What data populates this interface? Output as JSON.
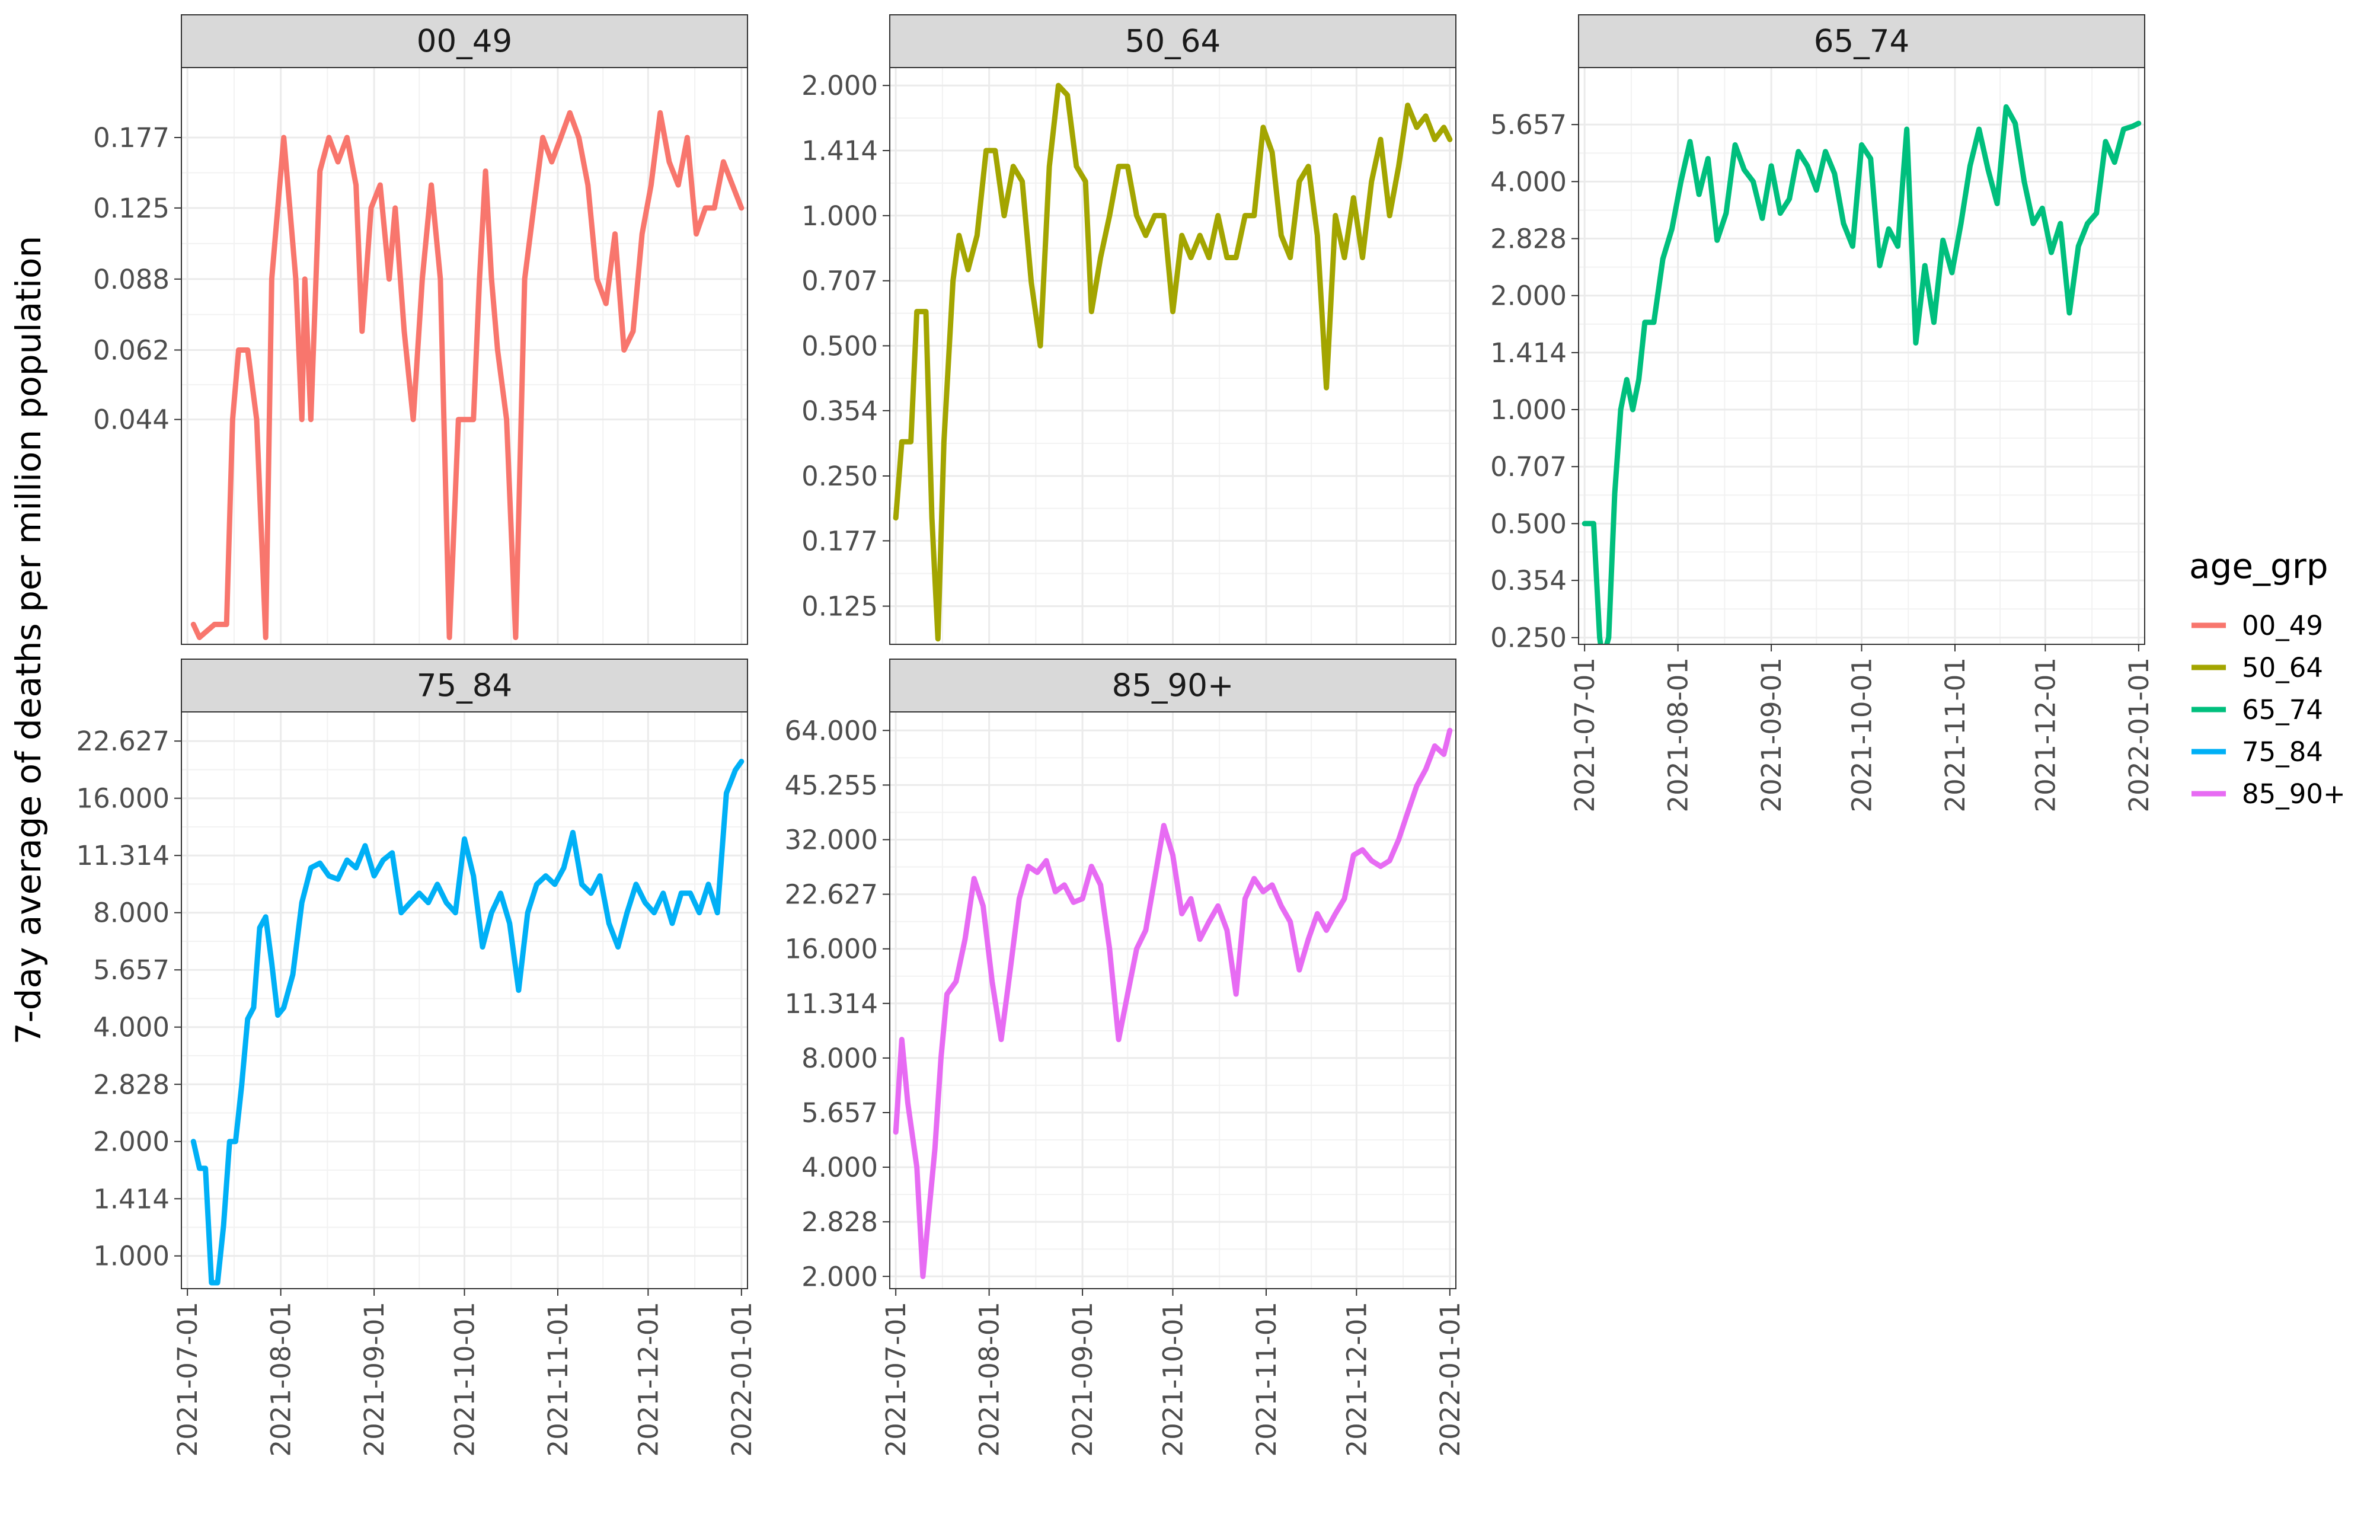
{
  "chart_data": {
    "type": "line",
    "ylabel": "7-day average of deaths per million population",
    "xlabel": "",
    "y_scale": "log2",
    "x_ticks": [
      "2021-07-01",
      "2021-08-01",
      "2021-09-01",
      "2021-10-01",
      "2021-11-01",
      "2021-12-01",
      "2022-01-01"
    ],
    "legend": {
      "title": "age_grp",
      "position": "right",
      "entries": [
        "00_49",
        "50_64",
        "65_74",
        "75_84",
        "85_90+"
      ]
    },
    "grid": true,
    "colors": {
      "00_49": "#F8766D",
      "50_64": "#A3A500",
      "65_74": "#00BF7D",
      "75_84": "#00B0F6",
      "85_90+": "#E76BF3"
    },
    "panels": [
      {
        "name": "00_49",
        "ylim": [
          0.0145,
          0.25
        ],
        "y_ticks": [
          "0.044",
          "0.062",
          "0.088",
          "0.125",
          "0.177"
        ],
        "series": [
          {
            "name": "00_49",
            "x": [
              "2021-07-03",
              "2021-07-05",
              "2021-07-10",
              "2021-07-14",
              "2021-07-16",
              "2021-07-18",
              "2021-07-21",
              "2021-07-24",
              "2021-07-27",
              "2021-07-29",
              "2021-07-31",
              "2021-08-02",
              "2021-08-04",
              "2021-08-06",
              "2021-08-08",
              "2021-08-09",
              "2021-08-11",
              "2021-08-14",
              "2021-08-17",
              "2021-08-20",
              "2021-08-23",
              "2021-08-26",
              "2021-08-28",
              "2021-08-31",
              "2021-09-03",
              "2021-09-06",
              "2021-09-08",
              "2021-09-11",
              "2021-09-14",
              "2021-09-17",
              "2021-09-20",
              "2021-09-23",
              "2021-09-26",
              "2021-09-29",
              "2021-10-01",
              "2021-10-04",
              "2021-10-06",
              "2021-10-08",
              "2021-10-10",
              "2021-10-12",
              "2021-10-15",
              "2021-10-18",
              "2021-10-21",
              "2021-10-24",
              "2021-10-27",
              "2021-10-30",
              "2021-11-02",
              "2021-11-05",
              "2021-11-08",
              "2021-11-11",
              "2021-11-14",
              "2021-11-17",
              "2021-11-20",
              "2021-11-23",
              "2021-11-26",
              "2021-11-29",
              "2021-12-02",
              "2021-12-05",
              "2021-12-08",
              "2021-12-11",
              "2021-12-14",
              "2021-12-17",
              "2021-12-20",
              "2021-12-23",
              "2021-12-26",
              "2021-12-29",
              "2022-01-01"
            ],
            "values": [
              0.016,
              0.015,
              0.016,
              0.016,
              0.044,
              0.062,
              0.062,
              0.044,
              0.015,
              0.088,
              0.125,
              0.177,
              0.125,
              0.088,
              0.044,
              0.088,
              0.044,
              0.15,
              0.177,
              0.157,
              0.177,
              0.14,
              0.068,
              0.125,
              0.14,
              0.088,
              0.125,
              0.068,
              0.044,
              0.088,
              0.14,
              0.088,
              0.015,
              0.044,
              0.044,
              0.044,
              0.088,
              0.15,
              0.088,
              0.062,
              0.044,
              0.015,
              0.088,
              0.125,
              0.177,
              0.157,
              0.177,
              0.2,
              0.177,
              0.14,
              0.088,
              0.078,
              0.11,
              0.062,
              0.068,
              0.11,
              0.14,
              0.2,
              0.157,
              0.14,
              0.177,
              0.11,
              0.125,
              0.125,
              0.157,
              0.14,
              0.125
            ]
          }
        ]
      },
      {
        "name": "50_64",
        "ylim": [
          0.102,
          2.2
        ],
        "y_ticks": [
          "0.125",
          "0.177",
          "0.250",
          "0.354",
          "0.500",
          "0.707",
          "1.000",
          "1.414",
          "2.000"
        ],
        "series": [
          {
            "name": "50_64",
            "x": [
              "2021-07-01",
              "2021-07-03",
              "2021-07-06",
              "2021-07-08",
              "2021-07-11",
              "2021-07-13",
              "2021-07-15",
              "2021-07-17",
              "2021-07-20",
              "2021-07-22",
              "2021-07-25",
              "2021-07-28",
              "2021-07-31",
              "2021-08-03",
              "2021-08-06",
              "2021-08-09",
              "2021-08-12",
              "2021-08-15",
              "2021-08-18",
              "2021-08-21",
              "2021-08-24",
              "2021-08-27",
              "2021-08-30",
              "2021-09-02",
              "2021-09-04",
              "2021-09-07",
              "2021-09-10",
              "2021-09-13",
              "2021-09-16",
              "2021-09-19",
              "2021-09-22",
              "2021-09-25",
              "2021-09-28",
              "2021-10-01",
              "2021-10-04",
              "2021-10-07",
              "2021-10-10",
              "2021-10-13",
              "2021-10-16",
              "2021-10-19",
              "2021-10-22",
              "2021-10-25",
              "2021-10-28",
              "2021-10-31",
              "2021-11-03",
              "2021-11-06",
              "2021-11-09",
              "2021-11-12",
              "2021-11-15",
              "2021-11-18",
              "2021-11-21",
              "2021-11-24",
              "2021-11-27",
              "2021-11-30",
              "2021-12-03",
              "2021-12-06",
              "2021-12-09",
              "2021-12-12",
              "2021-12-15",
              "2021-12-18",
              "2021-12-21",
              "2021-12-24",
              "2021-12-27",
              "2021-12-30",
              "2022-01-01"
            ],
            "values": [
              0.2,
              0.3,
              0.3,
              0.6,
              0.6,
              0.2,
              0.105,
              0.3,
              0.707,
              0.9,
              0.75,
              0.9,
              1.414,
              1.414,
              1.0,
              1.3,
              1.2,
              0.7,
              0.5,
              1.3,
              2.0,
              1.9,
              1.3,
              1.2,
              0.6,
              0.8,
              1.0,
              1.3,
              1.3,
              1.0,
              0.9,
              1.0,
              1.0,
              0.6,
              0.9,
              0.8,
              0.9,
              0.8,
              1.0,
              0.8,
              0.8,
              1.0,
              1.0,
              1.6,
              1.4,
              0.9,
              0.8,
              1.2,
              1.3,
              0.9,
              0.4,
              1.0,
              0.8,
              1.1,
              0.8,
              1.2,
              1.5,
              1.0,
              1.3,
              1.8,
              1.6,
              1.7,
              1.5,
              1.6,
              1.5
            ]
          }
        ]
      },
      {
        "name": "65_74",
        "ylim": [
          0.24,
          8.0
        ],
        "y_ticks": [
          "0.250",
          "0.354",
          "0.500",
          "0.707",
          "1.000",
          "1.414",
          "2.000",
          "2.828",
          "4.000",
          "5.657"
        ],
        "series": [
          {
            "name": "65_74",
            "x": [
              "2021-07-01",
              "2021-07-04",
              "2021-07-06",
              "2021-07-07",
              "2021-07-09",
              "2021-07-11",
              "2021-07-13",
              "2021-07-15",
              "2021-07-17",
              "2021-07-19",
              "2021-07-21",
              "2021-07-24",
              "2021-07-27",
              "2021-07-30",
              "2021-08-02",
              "2021-08-05",
              "2021-08-08",
              "2021-08-11",
              "2021-08-14",
              "2021-08-17",
              "2021-08-20",
              "2021-08-23",
              "2021-08-26",
              "2021-08-29",
              "2021-09-01",
              "2021-09-04",
              "2021-09-07",
              "2021-09-10",
              "2021-09-13",
              "2021-09-16",
              "2021-09-19",
              "2021-09-22",
              "2021-09-25",
              "2021-09-28",
              "2021-10-01",
              "2021-10-04",
              "2021-10-07",
              "2021-10-10",
              "2021-10-13",
              "2021-10-16",
              "2021-10-19",
              "2021-10-22",
              "2021-10-25",
              "2021-10-28",
              "2021-10-31",
              "2021-11-03",
              "2021-11-06",
              "2021-11-09",
              "2021-11-12",
              "2021-11-15",
              "2021-11-18",
              "2021-11-21",
              "2021-11-24",
              "2021-11-27",
              "2021-11-30",
              "2021-12-03",
              "2021-12-06",
              "2021-12-09",
              "2021-12-12",
              "2021-12-15",
              "2021-12-18",
              "2021-12-21",
              "2021-12-24",
              "2021-12-27",
              "2021-12-30",
              "2022-01-01"
            ],
            "values": [
              0.5,
              0.5,
              0.25,
              0.22,
              0.25,
              0.6,
              1.0,
              1.2,
              1.0,
              1.2,
              1.7,
              1.7,
              2.5,
              3.0,
              4.0,
              5.1,
              3.7,
              4.6,
              2.8,
              3.3,
              5.0,
              4.3,
              4.0,
              3.2,
              4.4,
              3.3,
              3.6,
              4.8,
              4.4,
              3.8,
              4.8,
              4.2,
              3.1,
              2.7,
              5.0,
              4.6,
              2.4,
              3.0,
              2.7,
              5.5,
              1.5,
              2.4,
              1.7,
              2.8,
              2.3,
              3.1,
              4.4,
              5.5,
              4.3,
              3.5,
              6.3,
              5.7,
              4.0,
              3.1,
              3.4,
              2.6,
              3.1,
              1.8,
              2.7,
              3.1,
              3.3,
              5.1,
              4.5,
              5.5,
              5.6,
              5.7
            ]
          }
        ]
      },
      {
        "name": "75_84",
        "ylim": [
          0.82,
          27.0
        ],
        "y_ticks": [
          "1.000",
          "1.414",
          "2.000",
          "2.828",
          "4.000",
          "5.657",
          "8.000",
          "11.314",
          "16.000",
          "22.627"
        ],
        "series": [
          {
            "name": "75_84",
            "x": [
              "2021-07-03",
              "2021-07-05",
              "2021-07-07",
              "2021-07-09",
              "2021-07-11",
              "2021-07-13",
              "2021-07-15",
              "2021-07-17",
              "2021-07-19",
              "2021-07-21",
              "2021-07-23",
              "2021-07-25",
              "2021-07-27",
              "2021-07-29",
              "2021-07-31",
              "2021-08-02",
              "2021-08-05",
              "2021-08-08",
              "2021-08-11",
              "2021-08-14",
              "2021-08-17",
              "2021-08-20",
              "2021-08-23",
              "2021-08-26",
              "2021-08-29",
              "2021-09-01",
              "2021-09-04",
              "2021-09-07",
              "2021-09-10",
              "2021-09-13",
              "2021-09-16",
              "2021-09-19",
              "2021-09-22",
              "2021-09-25",
              "2021-09-28",
              "2021-10-01",
              "2021-10-04",
              "2021-10-07",
              "2021-10-10",
              "2021-10-13",
              "2021-10-16",
              "2021-10-19",
              "2021-10-22",
              "2021-10-25",
              "2021-10-28",
              "2021-10-31",
              "2021-11-03",
              "2021-11-06",
              "2021-11-09",
              "2021-11-12",
              "2021-11-15",
              "2021-11-18",
              "2021-11-21",
              "2021-11-24",
              "2021-11-27",
              "2021-11-30",
              "2021-12-03",
              "2021-12-06",
              "2021-12-09",
              "2021-12-12",
              "2021-12-15",
              "2021-12-18",
              "2021-12-21",
              "2021-12-24",
              "2021-12-27",
              "2021-12-30",
              "2022-01-01"
            ],
            "values": [
              2.0,
              1.7,
              1.7,
              0.85,
              0.85,
              1.2,
              2.0,
              2.0,
              2.8,
              4.2,
              4.5,
              7.3,
              7.8,
              5.9,
              4.3,
              4.5,
              5.5,
              8.5,
              10.5,
              10.8,
              10.0,
              9.8,
              11.0,
              10.5,
              12.0,
              10.0,
              11.0,
              11.5,
              8.0,
              8.5,
              9.0,
              8.5,
              9.5,
              8.5,
              8.0,
              12.5,
              10.0,
              6.5,
              8.0,
              9.0,
              7.5,
              5.0,
              8.0,
              9.5,
              10.0,
              9.5,
              10.5,
              13.0,
              9.5,
              9.0,
              10.0,
              7.5,
              6.5,
              8.0,
              9.5,
              8.5,
              8.0,
              9.0,
              7.5,
              9.0,
              9.0,
              8.0,
              9.5,
              8.0,
              16.5,
              19.0,
              20.0
            ]
          }
        ]
      },
      {
        "name": "85_90+",
        "ylim": [
          1.85,
          72.0
        ],
        "y_ticks": [
          "2.000",
          "2.828",
          "4.000",
          "5.657",
          "8.000",
          "11.314",
          "16.000",
          "22.627",
          "32.000",
          "45.255",
          "64.000"
        ],
        "series": [
          {
            "name": "85_90+",
            "x": [
              "2021-07-01",
              "2021-07-03",
              "2021-07-05",
              "2021-07-08",
              "2021-07-10",
              "2021-07-12",
              "2021-07-14",
              "2021-07-16",
              "2021-07-18",
              "2021-07-21",
              "2021-07-24",
              "2021-07-27",
              "2021-07-30",
              "2021-08-02",
              "2021-08-05",
              "2021-08-08",
              "2021-08-11",
              "2021-08-14",
              "2021-08-17",
              "2021-08-20",
              "2021-08-23",
              "2021-08-26",
              "2021-08-29",
              "2021-09-01",
              "2021-09-04",
              "2021-09-07",
              "2021-09-10",
              "2021-09-13",
              "2021-09-16",
              "2021-09-19",
              "2021-09-22",
              "2021-09-25",
              "2021-09-28",
              "2021-10-01",
              "2021-10-04",
              "2021-10-07",
              "2021-10-10",
              "2021-10-13",
              "2021-10-16",
              "2021-10-19",
              "2021-10-22",
              "2021-10-25",
              "2021-10-28",
              "2021-10-31",
              "2021-11-03",
              "2021-11-06",
              "2021-11-09",
              "2021-11-12",
              "2021-11-15",
              "2021-11-18",
              "2021-11-21",
              "2021-11-24",
              "2021-11-27",
              "2021-11-30",
              "2021-12-03",
              "2021-12-06",
              "2021-12-09",
              "2021-12-12",
              "2021-12-15",
              "2021-12-18",
              "2021-12-21",
              "2021-12-24",
              "2021-12-27",
              "2021-12-30",
              "2022-01-01"
            ],
            "values": [
              5.0,
              9.0,
              6.0,
              4.0,
              2.0,
              3.0,
              4.5,
              8.0,
              12.0,
              13.0,
              17.0,
              25.0,
              21.0,
              13.0,
              9.0,
              14.0,
              22.0,
              27.0,
              26.0,
              28.0,
              23.0,
              24.0,
              21.5,
              22.0,
              27.0,
              24.0,
              16.0,
              9.0,
              12.0,
              16.0,
              18.0,
              25.0,
              35.0,
              29.0,
              20.0,
              22.0,
              17.0,
              19.0,
              21.0,
              18.0,
              12.0,
              22.0,
              25.0,
              23.0,
              24.0,
              21.0,
              19.0,
              14.0,
              17.0,
              20.0,
              18.0,
              20.0,
              22.0,
              29.0,
              30.0,
              28.0,
              27.0,
              28.0,
              32.0,
              38.0,
              45.0,
              50.0,
              58.0,
              55.0,
              64.0
            ]
          }
        ]
      }
    ]
  }
}
